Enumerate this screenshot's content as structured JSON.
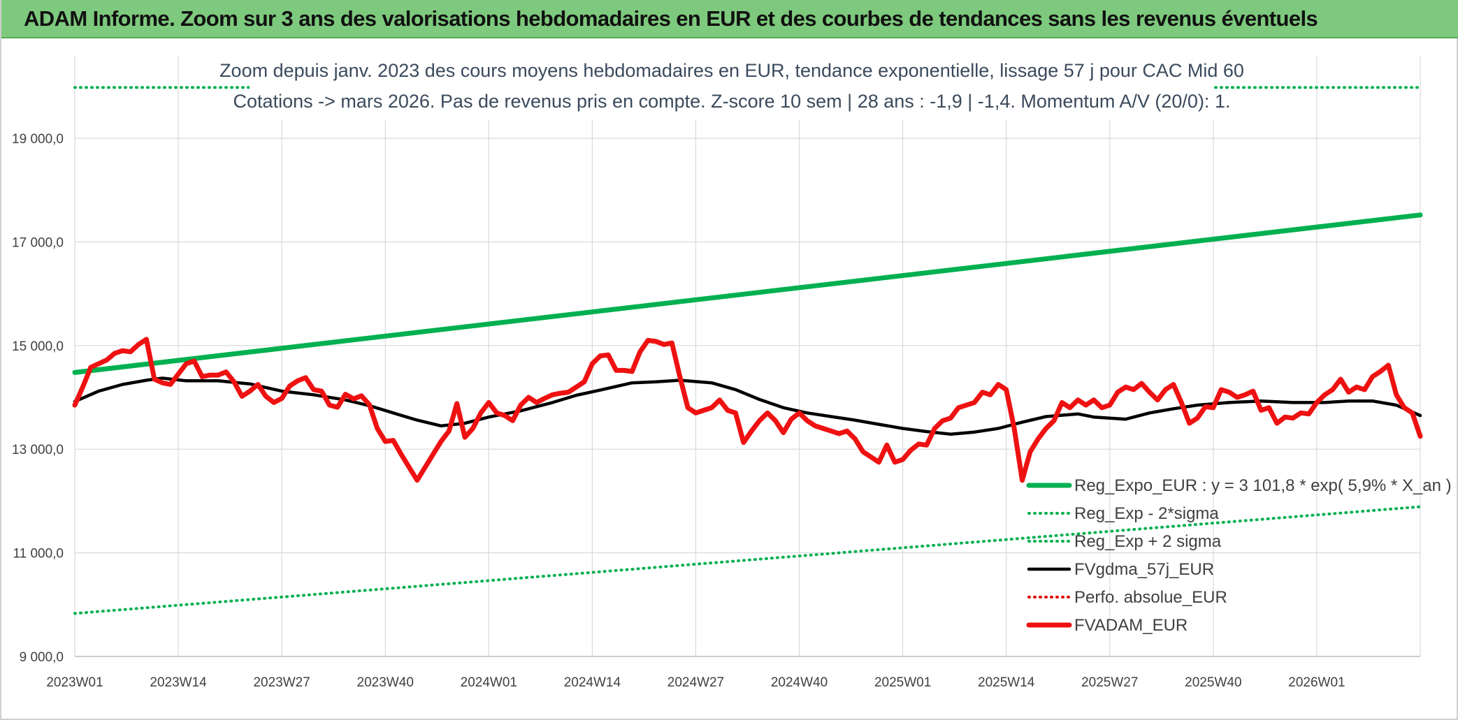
{
  "banner": {
    "title": "ADAM Informe. Zoom sur 3 ans des valorisations hebdomadaires en EUR et des courbes de tendances sans les revenus éventuels"
  },
  "colors": {
    "banner_bg": "#7dc97d",
    "reg_expo": "#00b050",
    "sigma_lines": "#00b050",
    "fvgdma": "#000000",
    "perfo": "#e00000",
    "fvadam": "#ee1111",
    "grid": "#d9d9d9"
  },
  "chart_data": {
    "type": "line",
    "title": [
      "Zoom depuis janv. 2023 des cours moyens hebdomadaires en EUR, tendance exponentielle, lissage 57 j pour CAC Mid 60",
      "Cotations -> mars 2026. Pas de revenus pris en compte. Z-score 10 sem | 28 ans : -1,9 | -1,4. Momentum A/V (20/0): 1."
    ],
    "xlabel": "",
    "ylabel": "",
    "ylim": [
      9000,
      19000
    ],
    "yticks": [
      9000,
      11000,
      13000,
      15000,
      17000,
      19000
    ],
    "ytick_labels": [
      "9 000,0",
      "11 000,0",
      "13 000,0",
      "15 000,0",
      "17 000,0",
      "19 000,0"
    ],
    "x_tick_labels": [
      "2023W01",
      "2023W14",
      "2023W27",
      "2023W40",
      "2024W01",
      "2024W14",
      "2024W27",
      "2024W40",
      "2025W01",
      "2025W14",
      "2025W27",
      "2025W40",
      "2026W01"
    ],
    "x_tick_weeks": [
      0,
      13,
      26,
      39,
      52,
      65,
      78,
      91,
      104,
      117,
      130,
      143,
      156
    ],
    "x_range": [
      0,
      169
    ],
    "grid": true,
    "legend_position": "bottom-right",
    "series": [
      {
        "name": "Reg_Expo_EUR : y = 3 101,8 * exp( 5,9% *  X_an )",
        "style": "solid-thick",
        "color": "#00b050",
        "points": [
          [
            0,
            14480
          ],
          [
            169,
            17520
          ]
        ]
      },
      {
        "name": "Reg_Exp - 2*sigma",
        "style": "dotted",
        "color": "#00b050",
        "points": [
          [
            0,
            9830
          ],
          [
            169,
            11890
          ]
        ]
      },
      {
        "name": "Reg_Exp + 2 sigma",
        "style": "dotted",
        "color": "#00b050",
        "points": [
          [
            0,
            19980
          ],
          [
            169,
            19980
          ]
        ]
      },
      {
        "name": "FVgdma_57j_EUR",
        "style": "solid",
        "color": "#000000",
        "points": [
          [
            0,
            13920
          ],
          [
            3,
            14120
          ],
          [
            6,
            14250
          ],
          [
            9,
            14330
          ],
          [
            11,
            14370
          ],
          [
            14,
            14320
          ],
          [
            18,
            14320
          ],
          [
            22,
            14260
          ],
          [
            26,
            14120
          ],
          [
            30,
            14050
          ],
          [
            34,
            13950
          ],
          [
            37,
            13840
          ],
          [
            40,
            13700
          ],
          [
            43,
            13560
          ],
          [
            46,
            13450
          ],
          [
            49,
            13500
          ],
          [
            52,
            13620
          ],
          [
            56,
            13740
          ],
          [
            60,
            13900
          ],
          [
            63,
            14040
          ],
          [
            66,
            14140
          ],
          [
            70,
            14280
          ],
          [
            73,
            14300
          ],
          [
            76,
            14330
          ],
          [
            80,
            14280
          ],
          [
            83,
            14150
          ],
          [
            86,
            13960
          ],
          [
            89,
            13800
          ],
          [
            92,
            13700
          ],
          [
            95,
            13630
          ],
          [
            98,
            13560
          ],
          [
            101,
            13480
          ],
          [
            104,
            13400
          ],
          [
            107,
            13340
          ],
          [
            110,
            13290
          ],
          [
            113,
            13330
          ],
          [
            116,
            13400
          ],
          [
            119,
            13520
          ],
          [
            122,
            13630
          ],
          [
            126,
            13680
          ],
          [
            128,
            13620
          ],
          [
            132,
            13580
          ],
          [
            135,
            13700
          ],
          [
            138,
            13780
          ],
          [
            141,
            13850
          ],
          [
            145,
            13900
          ],
          [
            149,
            13930
          ],
          [
            153,
            13900
          ],
          [
            157,
            13900
          ],
          [
            160,
            13930
          ],
          [
            163,
            13930
          ],
          [
            166,
            13850
          ],
          [
            169,
            13650
          ]
        ]
      },
      {
        "name": "Perfo. absolue_EUR",
        "style": "dotted",
        "color": "#e00000",
        "points": []
      },
      {
        "name": "FVADAM_EUR",
        "style": "solid-thick",
        "color": "#ee1111",
        "points": [
          [
            0,
            13850
          ],
          [
            1,
            14200
          ],
          [
            2,
            14580
          ],
          [
            3,
            14650
          ],
          [
            4,
            14720
          ],
          [
            5,
            14850
          ],
          [
            6,
            14900
          ],
          [
            7,
            14880
          ],
          [
            8,
            15020
          ],
          [
            9,
            15120
          ],
          [
            10,
            14350
          ],
          [
            11,
            14280
          ],
          [
            12,
            14250
          ],
          [
            13,
            14450
          ],
          [
            14,
            14650
          ],
          [
            15,
            14700
          ],
          [
            16,
            14400
          ],
          [
            17,
            14430
          ],
          [
            18,
            14430
          ],
          [
            19,
            14490
          ],
          [
            20,
            14300
          ],
          [
            21,
            14020
          ],
          [
            22,
            14120
          ],
          [
            23,
            14250
          ],
          [
            24,
            14020
          ],
          [
            25,
            13900
          ],
          [
            26,
            13980
          ],
          [
            27,
            14220
          ],
          [
            28,
            14320
          ],
          [
            29,
            14380
          ],
          [
            30,
            14150
          ],
          [
            31,
            14120
          ],
          [
            32,
            13850
          ],
          [
            33,
            13810
          ],
          [
            34,
            14060
          ],
          [
            35,
            13970
          ],
          [
            36,
            14030
          ],
          [
            37,
            13860
          ],
          [
            38,
            13400
          ],
          [
            39,
            13150
          ],
          [
            40,
            13170
          ],
          [
            41,
            12900
          ],
          [
            42,
            12650
          ],
          [
            43,
            12400
          ],
          [
            44,
            12650
          ],
          [
            45,
            12900
          ],
          [
            46,
            13150
          ],
          [
            47,
            13350
          ],
          [
            48,
            13880
          ],
          [
            49,
            13230
          ],
          [
            50,
            13400
          ],
          [
            51,
            13700
          ],
          [
            52,
            13900
          ],
          [
            53,
            13700
          ],
          [
            54,
            13650
          ],
          [
            55,
            13550
          ],
          [
            56,
            13850
          ],
          [
            57,
            14000
          ],
          [
            58,
            13900
          ],
          [
            59,
            13980
          ],
          [
            60,
            14050
          ],
          [
            61,
            14080
          ],
          [
            62,
            14100
          ],
          [
            63,
            14200
          ],
          [
            64,
            14300
          ],
          [
            65,
            14650
          ],
          [
            66,
            14800
          ],
          [
            67,
            14820
          ],
          [
            68,
            14520
          ],
          [
            69,
            14520
          ],
          [
            70,
            14500
          ],
          [
            71,
            14880
          ],
          [
            72,
            15100
          ],
          [
            73,
            15080
          ],
          [
            74,
            15020
          ],
          [
            75,
            15050
          ],
          [
            76,
            14400
          ],
          [
            77,
            13800
          ],
          [
            78,
            13700
          ],
          [
            79,
            13750
          ],
          [
            80,
            13800
          ],
          [
            81,
            13950
          ],
          [
            82,
            13750
          ],
          [
            83,
            13700
          ],
          [
            84,
            13130
          ],
          [
            85,
            13350
          ],
          [
            86,
            13550
          ],
          [
            87,
            13700
          ],
          [
            88,
            13550
          ],
          [
            89,
            13320
          ],
          [
            90,
            13580
          ],
          [
            91,
            13700
          ],
          [
            92,
            13550
          ],
          [
            93,
            13450
          ],
          [
            94,
            13400
          ],
          [
            95,
            13350
          ],
          [
            96,
            13300
          ],
          [
            97,
            13350
          ],
          [
            98,
            13200
          ],
          [
            99,
            12950
          ],
          [
            100,
            12850
          ],
          [
            101,
            12750
          ],
          [
            102,
            13080
          ],
          [
            103,
            12750
          ],
          [
            104,
            12800
          ],
          [
            105,
            12980
          ],
          [
            106,
            13100
          ],
          [
            107,
            13080
          ],
          [
            108,
            13400
          ],
          [
            109,
            13550
          ],
          [
            110,
            13600
          ],
          [
            111,
            13800
          ],
          [
            112,
            13850
          ],
          [
            113,
            13900
          ],
          [
            114,
            14100
          ],
          [
            115,
            14050
          ],
          [
            116,
            14250
          ],
          [
            117,
            14150
          ],
          [
            118,
            13400
          ],
          [
            119,
            12400
          ],
          [
            120,
            12950
          ],
          [
            121,
            13200
          ],
          [
            122,
            13400
          ],
          [
            123,
            13550
          ],
          [
            124,
            13900
          ],
          [
            125,
            13800
          ],
          [
            126,
            13950
          ],
          [
            127,
            13850
          ],
          [
            128,
            13950
          ],
          [
            129,
            13800
          ],
          [
            130,
            13850
          ],
          [
            131,
            14100
          ],
          [
            132,
            14200
          ],
          [
            133,
            14150
          ],
          [
            134,
            14270
          ],
          [
            135,
            14100
          ],
          [
            136,
            13950
          ],
          [
            137,
            14150
          ],
          [
            138,
            14250
          ],
          [
            139,
            13900
          ],
          [
            140,
            13500
          ],
          [
            141,
            13600
          ],
          [
            142,
            13820
          ],
          [
            143,
            13800
          ],
          [
            144,
            14150
          ],
          [
            145,
            14100
          ],
          [
            146,
            14000
          ],
          [
            147,
            14050
          ],
          [
            148,
            14120
          ],
          [
            149,
            13750
          ],
          [
            150,
            13800
          ],
          [
            151,
            13500
          ],
          [
            152,
            13620
          ],
          [
            153,
            13600
          ],
          [
            154,
            13700
          ],
          [
            155,
            13680
          ],
          [
            156,
            13900
          ],
          [
            157,
            14050
          ],
          [
            158,
            14150
          ],
          [
            159,
            14350
          ],
          [
            160,
            14100
          ],
          [
            161,
            14200
          ],
          [
            162,
            14150
          ],
          [
            163,
            14400
          ],
          [
            164,
            14500
          ],
          [
            165,
            14620
          ],
          [
            166,
            14050
          ],
          [
            167,
            13800
          ],
          [
            168,
            13700
          ],
          [
            169,
            13250
          ]
        ]
      }
    ]
  }
}
